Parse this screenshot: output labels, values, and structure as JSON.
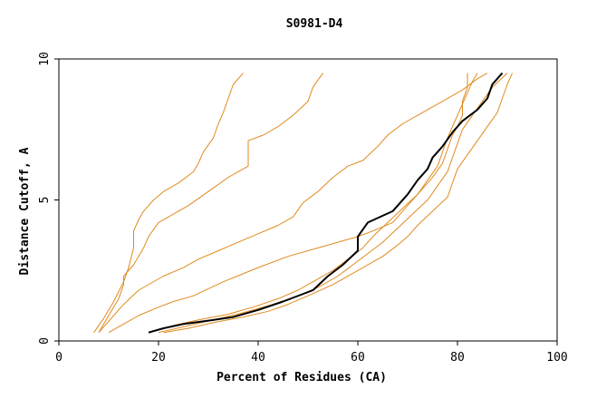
{
  "chart_data": {
    "type": "line",
    "title": "S0981-D4",
    "xlabel": "Percent of Residues (CA)",
    "ylabel": "Distance Cutoff, A",
    "xlim": [
      0,
      100
    ],
    "ylim": [
      0,
      10
    ],
    "xticks": [
      0,
      20,
      40,
      60,
      80,
      100
    ],
    "yticks": [
      0,
      5,
      10
    ],
    "grid": false,
    "legend": "none",
    "colors": {
      "highlight": "#000000",
      "others": "#e08a1e",
      "axes": "#000000"
    },
    "series": [
      {
        "highlight": true,
        "points": [
          [
            18,
            0.3
          ],
          [
            21,
            0.45
          ],
          [
            25,
            0.6
          ],
          [
            30,
            0.72
          ],
          [
            35,
            0.85
          ],
          [
            40,
            1.1
          ],
          [
            45,
            1.4
          ],
          [
            51,
            1.8
          ],
          [
            54,
            2.3
          ],
          [
            57,
            2.7
          ],
          [
            60,
            3.2
          ],
          [
            60,
            3.7
          ],
          [
            62,
            4.2
          ],
          [
            67,
            4.6
          ],
          [
            70,
            5.2
          ],
          [
            72,
            5.7
          ],
          [
            74,
            6.1
          ],
          [
            75,
            6.5
          ],
          [
            77,
            6.9
          ],
          [
            79,
            7.4
          ],
          [
            81,
            7.8
          ],
          [
            84,
            8.2
          ],
          [
            86,
            8.6
          ],
          [
            87,
            9.1
          ],
          [
            89,
            9.5
          ]
        ]
      },
      {
        "highlight": false,
        "points": [
          [
            7,
            0.3
          ],
          [
            9,
            0.8
          ],
          [
            11,
            1.4
          ],
          [
            13,
            2.1
          ],
          [
            14,
            2.6
          ],
          [
            15,
            3.3
          ],
          [
            15,
            3.9
          ],
          [
            16,
            4.3
          ],
          [
            17,
            4.6
          ],
          [
            19,
            5.0
          ],
          [
            21,
            5.3
          ],
          [
            24,
            5.6
          ],
          [
            27,
            6.0
          ],
          [
            28,
            6.3
          ],
          [
            29,
            6.7
          ],
          [
            31,
            7.2
          ],
          [
            32,
            7.7
          ],
          [
            33,
            8.1
          ],
          [
            34,
            8.6
          ],
          [
            35,
            9.1
          ],
          [
            37,
            9.5
          ]
        ]
      },
      {
        "highlight": false,
        "points": [
          [
            8,
            0.3
          ],
          [
            10,
            0.9
          ],
          [
            12,
            1.5
          ],
          [
            13,
            2.0
          ],
          [
            13,
            2.3
          ],
          [
            15,
            2.7
          ],
          [
            17,
            3.3
          ],
          [
            18,
            3.7
          ],
          [
            20,
            4.2
          ],
          [
            22,
            4.4
          ],
          [
            26,
            4.8
          ],
          [
            30,
            5.3
          ],
          [
            34,
            5.8
          ],
          [
            38,
            6.2
          ],
          [
            38,
            6.6
          ],
          [
            38,
            7.1
          ],
          [
            41,
            7.3
          ],
          [
            44,
            7.6
          ],
          [
            47,
            8.0
          ],
          [
            50,
            8.5
          ],
          [
            51,
            9.0
          ],
          [
            53,
            9.5
          ]
        ]
      },
      {
        "highlight": false,
        "points": [
          [
            10,
            0.3
          ],
          [
            13,
            0.6
          ],
          [
            16,
            0.9
          ],
          [
            20,
            1.2
          ],
          [
            23,
            1.4
          ],
          [
            27,
            1.6
          ],
          [
            33,
            2.1
          ],
          [
            40,
            2.6
          ],
          [
            46,
            3.0
          ],
          [
            52,
            3.3
          ],
          [
            56,
            3.5
          ],
          [
            60,
            3.7
          ],
          [
            63,
            3.9
          ],
          [
            67,
            4.2
          ],
          [
            70,
            4.8
          ],
          [
            73,
            5.4
          ],
          [
            75,
            5.8
          ],
          [
            77,
            6.3
          ],
          [
            78,
            6.8
          ],
          [
            79,
            7.3
          ],
          [
            80,
            7.6
          ],
          [
            81,
            8.0
          ],
          [
            81,
            8.5
          ],
          [
            82,
            9.0
          ],
          [
            82,
            9.5
          ]
        ]
      },
      {
        "highlight": false,
        "points": [
          [
            8,
            0.3
          ],
          [
            11,
            0.9
          ],
          [
            13,
            1.3
          ],
          [
            16,
            1.8
          ],
          [
            21,
            2.3
          ],
          [
            25,
            2.6
          ],
          [
            28,
            2.9
          ],
          [
            32,
            3.2
          ],
          [
            36,
            3.5
          ],
          [
            40,
            3.8
          ],
          [
            44,
            4.1
          ],
          [
            47,
            4.4
          ],
          [
            49,
            4.9
          ],
          [
            52,
            5.3
          ],
          [
            55,
            5.8
          ],
          [
            58,
            6.2
          ],
          [
            61,
            6.4
          ],
          [
            64,
            6.9
          ],
          [
            66,
            7.3
          ],
          [
            69,
            7.7
          ],
          [
            73,
            8.1
          ],
          [
            77,
            8.5
          ],
          [
            81,
            8.9
          ],
          [
            84,
            9.3
          ],
          [
            86,
            9.5
          ]
        ]
      },
      {
        "highlight": false,
        "points": [
          [
            21,
            0.3
          ],
          [
            26,
            0.45
          ],
          [
            31,
            0.65
          ],
          [
            37,
            0.85
          ],
          [
            42,
            1.05
          ],
          [
            46,
            1.3
          ],
          [
            50,
            1.6
          ],
          [
            55,
            2.0
          ],
          [
            60,
            2.5
          ],
          [
            65,
            3.0
          ],
          [
            68,
            3.4
          ],
          [
            70,
            3.7
          ],
          [
            72,
            4.1
          ],
          [
            75,
            4.6
          ],
          [
            78,
            5.1
          ],
          [
            79,
            5.6
          ],
          [
            80,
            6.1
          ],
          [
            82,
            6.6
          ],
          [
            84,
            7.1
          ],
          [
            86,
            7.6
          ],
          [
            88,
            8.1
          ],
          [
            89,
            8.6
          ],
          [
            90,
            9.1
          ],
          [
            91,
            9.5
          ]
        ]
      },
      {
        "highlight": false,
        "points": [
          [
            20,
            0.3
          ],
          [
            25,
            0.5
          ],
          [
            31,
            0.75
          ],
          [
            37,
            1.0
          ],
          [
            43,
            1.3
          ],
          [
            48,
            1.6
          ],
          [
            52,
            1.9
          ],
          [
            56,
            2.3
          ],
          [
            59,
            2.7
          ],
          [
            62,
            3.1
          ],
          [
            65,
            3.5
          ],
          [
            68,
            4.0
          ],
          [
            71,
            4.5
          ],
          [
            74,
            5.0
          ],
          [
            76,
            5.5
          ],
          [
            78,
            6.0
          ],
          [
            79,
            6.5
          ],
          [
            80,
            7.0
          ],
          [
            81,
            7.5
          ],
          [
            83,
            8.0
          ],
          [
            85,
            8.5
          ],
          [
            87,
            9.0
          ],
          [
            90,
            9.5
          ]
        ]
      },
      {
        "highlight": false,
        "points": [
          [
            18,
            0.3
          ],
          [
            23,
            0.55
          ],
          [
            28,
            0.75
          ],
          [
            34,
            0.95
          ],
          [
            39,
            1.2
          ],
          [
            44,
            1.5
          ],
          [
            48,
            1.8
          ],
          [
            51,
            2.1
          ],
          [
            55,
            2.5
          ],
          [
            58,
            2.9
          ],
          [
            61,
            3.3
          ],
          [
            63,
            3.7
          ],
          [
            66,
            4.2
          ],
          [
            69,
            4.7
          ],
          [
            72,
            5.2
          ],
          [
            74,
            5.7
          ],
          [
            76,
            6.2
          ],
          [
            77,
            6.7
          ],
          [
            78,
            7.2
          ],
          [
            79,
            7.6
          ],
          [
            80,
            8.0
          ],
          [
            81,
            8.4
          ],
          [
            82,
            8.8
          ],
          [
            83,
            9.2
          ],
          [
            84,
            9.5
          ]
        ]
      }
    ]
  }
}
